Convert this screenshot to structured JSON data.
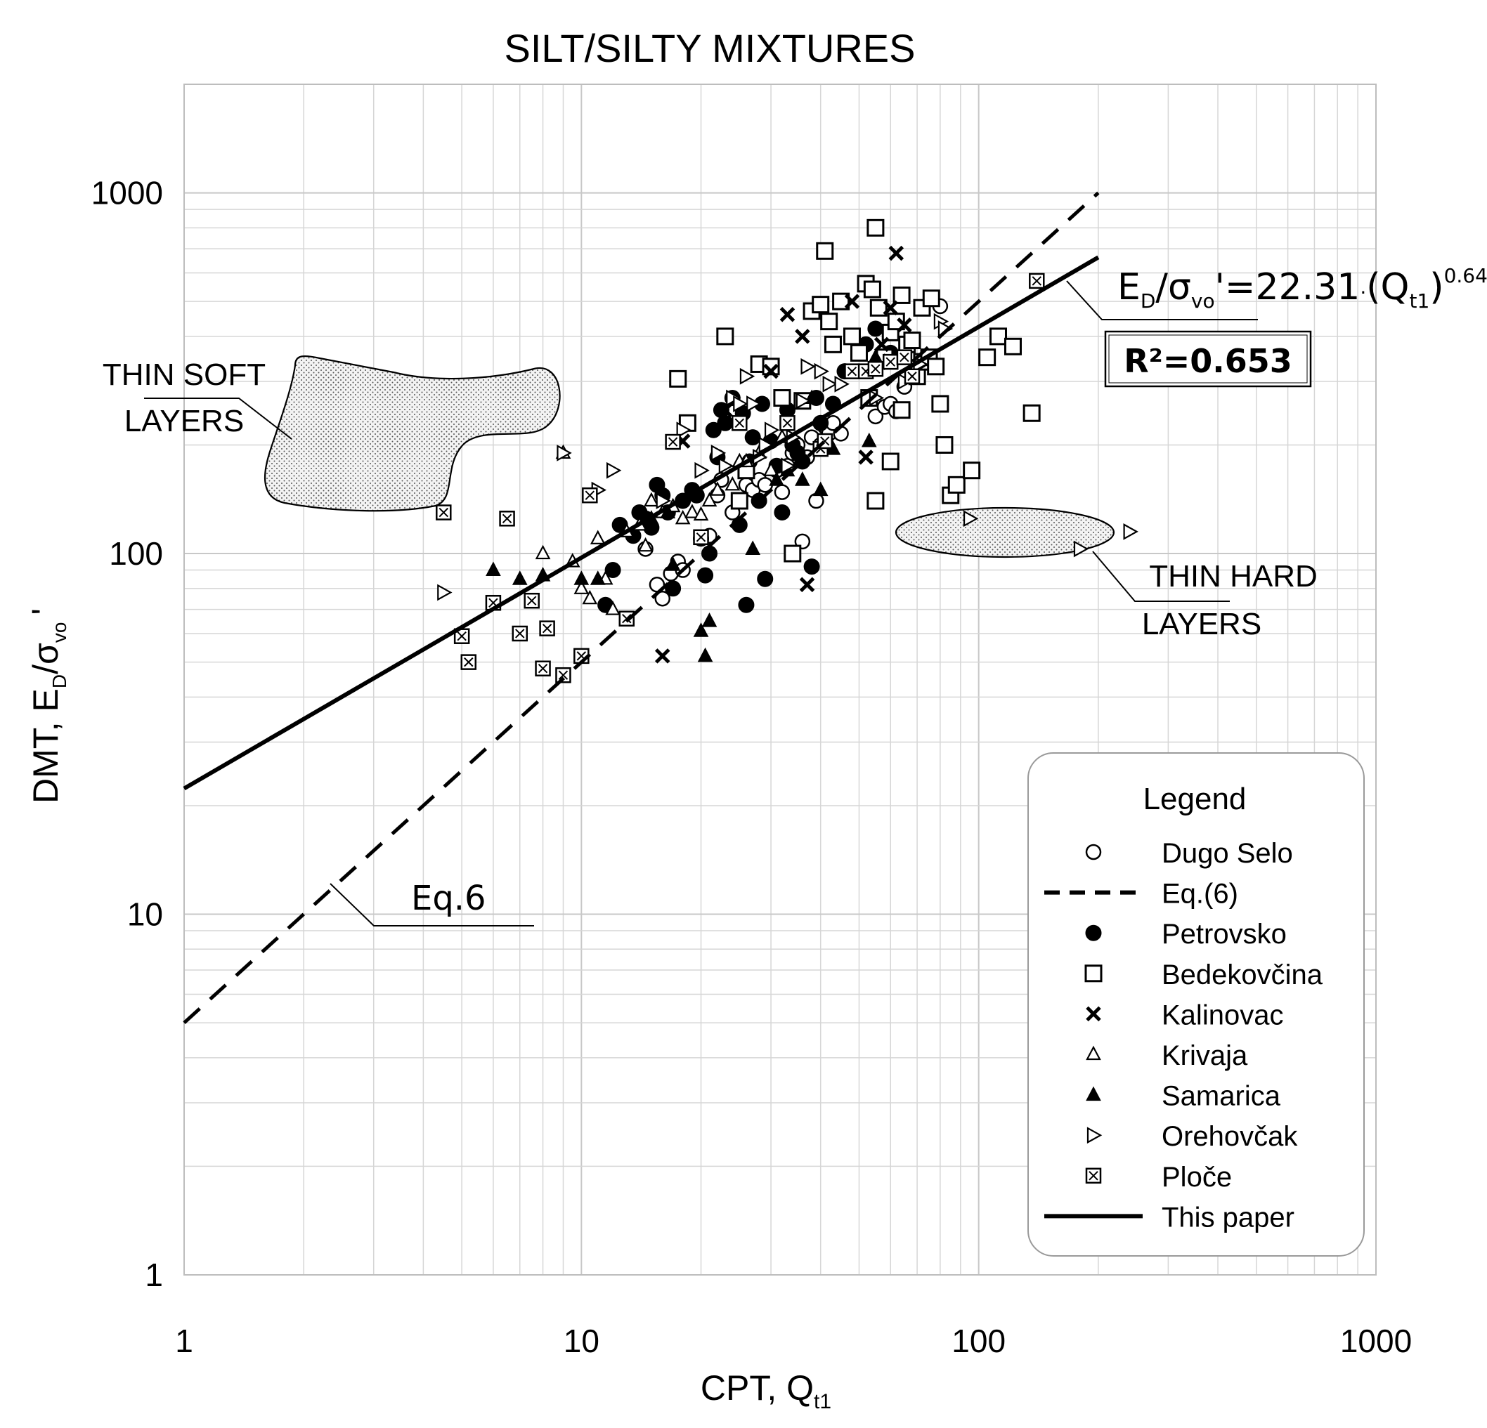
{
  "chart_data": {
    "type": "scatter",
    "title": "SILT/SILTY MIXTURES",
    "xlabel": {
      "main": "CPT, Q",
      "sub": "t1"
    },
    "ylabel": {
      "main1": "DMT, E",
      "sub1": "D",
      "main2": "/σ",
      "sub2": "vo",
      "tail": "'"
    },
    "xscale": "log",
    "yscale": "log",
    "xlim": [
      1,
      1000
    ],
    "ylim": [
      1,
      2000
    ],
    "x_ticks": [
      {
        "v": 1,
        "label": "1"
      },
      {
        "v": 10,
        "label": "10"
      },
      {
        "v": 100,
        "label": "100"
      },
      {
        "v": 1000,
        "label": "1000"
      }
    ],
    "y_ticks": [
      {
        "v": 1,
        "label": "1"
      },
      {
        "v": 10,
        "label": "10"
      },
      {
        "v": 100,
        "label": "100"
      },
      {
        "v": 1000,
        "label": "1000"
      }
    ],
    "grid": true,
    "lines": [
      {
        "name": "This paper",
        "style": "solid",
        "coef": 22.31,
        "exp": 0.64,
        "x_range": [
          1,
          200
        ]
      },
      {
        "name": "Eq.(6)",
        "style": "dashed",
        "coef": 5,
        "exp": 1.0,
        "x_range": [
          1,
          200
        ]
      }
    ],
    "equation": {
      "p1": "E",
      "s1": "D",
      "p2": "/σ",
      "s2": "vo",
      "p3": "'=22.31",
      "p4": "·",
      "p5": "(Q",
      "s3": "t1",
      "p6": ")",
      "sup": "0.64"
    },
    "r2_label": "R²=0.653",
    "eq6_label": "Eq.6",
    "regions": [
      {
        "name": "thin-soft-layers",
        "label_line1": "THIN SOFT",
        "label_line2": "LAYERS"
      },
      {
        "name": "thin-hard-layers",
        "label_line1": "THIN HARD",
        "label_line2": "LAYERS"
      }
    ],
    "series": [
      {
        "name": "Dugo Selo",
        "marker": "open-circle",
        "points": [
          [
            14.5,
            103
          ],
          [
            15.5,
            82
          ],
          [
            16,
            75
          ],
          [
            16.8,
            88
          ],
          [
            17.5,
            95
          ],
          [
            18,
            90
          ],
          [
            21,
            112
          ],
          [
            22,
            145
          ],
          [
            22.5,
            160
          ],
          [
            24,
            130
          ],
          [
            25,
            140
          ],
          [
            26,
            155
          ],
          [
            27,
            150
          ],
          [
            28,
            160
          ],
          [
            29,
            155
          ],
          [
            31,
            170
          ],
          [
            32,
            148
          ],
          [
            33,
            175
          ],
          [
            34,
            190
          ],
          [
            35,
            200
          ],
          [
            36,
            108
          ],
          [
            37,
            185
          ],
          [
            38,
            210
          ],
          [
            39,
            140
          ],
          [
            40,
            200
          ],
          [
            41,
            225
          ],
          [
            42,
            215
          ],
          [
            43,
            230
          ],
          [
            45,
            215
          ],
          [
            55,
            240
          ],
          [
            58,
            255
          ],
          [
            60,
            260
          ],
          [
            62,
            248
          ],
          [
            65,
            290
          ],
          [
            70,
            310
          ],
          [
            80,
            485
          ]
        ]
      },
      {
        "name": "Petrovsko",
        "marker": "filled-circle",
        "points": [
          [
            11.5,
            72
          ],
          [
            12,
            90
          ],
          [
            12.5,
            120
          ],
          [
            13.5,
            112
          ],
          [
            14,
            130
          ],
          [
            14.5,
            125
          ],
          [
            15,
            118
          ],
          [
            15.5,
            155
          ],
          [
            16,
            145
          ],
          [
            16.5,
            130
          ],
          [
            17,
            80
          ],
          [
            18,
            140
          ],
          [
            19,
            150
          ],
          [
            19.5,
            145
          ],
          [
            20,
            110
          ],
          [
            20.5,
            87
          ],
          [
            21,
            100
          ],
          [
            21.5,
            220
          ],
          [
            22,
            185
          ],
          [
            22.5,
            250
          ],
          [
            23,
            230
          ],
          [
            24,
            270
          ],
          [
            25,
            120
          ],
          [
            25.5,
            245
          ],
          [
            26,
            72
          ],
          [
            26.5,
            180
          ],
          [
            27,
            210
          ],
          [
            28,
            140
          ],
          [
            28.5,
            260
          ],
          [
            29,
            85
          ],
          [
            30,
            205
          ],
          [
            31,
            175
          ],
          [
            32,
            130
          ],
          [
            33,
            250
          ],
          [
            34,
            200
          ],
          [
            35,
            190
          ],
          [
            36,
            180
          ],
          [
            38,
            92
          ],
          [
            39,
            270
          ],
          [
            40,
            230
          ],
          [
            43,
            260
          ],
          [
            46,
            320
          ],
          [
            52,
            380
          ],
          [
            55,
            420
          ],
          [
            60,
            360
          ]
        ]
      },
      {
        "name": "Bedekovčina",
        "marker": "open-square",
        "points": [
          [
            17.5,
            305
          ],
          [
            18.5,
            230
          ],
          [
            23,
            400
          ],
          [
            25,
            140
          ],
          [
            26,
            170
          ],
          [
            28,
            335
          ],
          [
            30,
            330
          ],
          [
            32,
            270
          ],
          [
            34,
            100
          ],
          [
            36,
            265
          ],
          [
            38,
            470
          ],
          [
            40,
            490
          ],
          [
            42,
            440
          ],
          [
            45,
            500
          ],
          [
            48,
            400
          ],
          [
            50,
            360
          ],
          [
            52,
            560
          ],
          [
            53,
            270
          ],
          [
            54,
            540
          ],
          [
            55,
            800
          ],
          [
            56,
            480
          ],
          [
            58,
            350
          ],
          [
            60,
            410
          ],
          [
            62,
            440
          ],
          [
            64,
            520
          ],
          [
            66,
            380
          ],
          [
            68,
            390
          ],
          [
            70,
            310
          ],
          [
            72,
            340
          ],
          [
            75,
            350
          ],
          [
            80,
            260
          ],
          [
            78,
            330
          ],
          [
            82,
            200
          ],
          [
            85,
            145
          ],
          [
            88,
            155
          ],
          [
            96,
            170
          ],
          [
            105,
            350
          ],
          [
            112,
            400
          ],
          [
            122,
            375
          ],
          [
            136,
            245
          ],
          [
            55,
            140
          ],
          [
            60,
            180
          ],
          [
            64,
            250
          ],
          [
            72,
            480
          ],
          [
            76,
            510
          ],
          [
            41,
            690
          ],
          [
            43,
            380
          ]
        ]
      },
      {
        "name": "Kalinovac",
        "marker": "cross",
        "points": [
          [
            16,
            52
          ],
          [
            18,
            205
          ],
          [
            23,
            250
          ],
          [
            30,
            320
          ],
          [
            33,
            460
          ],
          [
            36,
            400
          ],
          [
            37,
            82
          ],
          [
            48,
            500
          ],
          [
            52,
            185
          ],
          [
            57,
            380
          ],
          [
            60,
            480
          ],
          [
            62,
            680
          ],
          [
            65,
            430
          ]
        ]
      },
      {
        "name": "Krivaja",
        "marker": "open-triangle-up",
        "points": [
          [
            8,
            100
          ],
          [
            9,
            190
          ],
          [
            9.5,
            95
          ],
          [
            10,
            80
          ],
          [
            10.5,
            75
          ],
          [
            11,
            110
          ],
          [
            11.5,
            85
          ],
          [
            12,
            70
          ],
          [
            13,
            115
          ],
          [
            14,
            120
          ],
          [
            14.5,
            105
          ],
          [
            15,
            140
          ],
          [
            16,
            130
          ],
          [
            17,
            135
          ],
          [
            18,
            125
          ],
          [
            19,
            130
          ],
          [
            20,
            128
          ],
          [
            21,
            140
          ],
          [
            22,
            150
          ],
          [
            24,
            155
          ],
          [
            25,
            180
          ],
          [
            26,
            180
          ],
          [
            28,
            190
          ],
          [
            30,
            170
          ],
          [
            32,
            210
          ]
        ]
      },
      {
        "name": "Samarica",
        "marker": "filled-triangle-up",
        "points": [
          [
            6,
            90
          ],
          [
            7,
            85
          ],
          [
            8,
            87
          ],
          [
            10,
            85
          ],
          [
            11,
            85
          ],
          [
            15,
            125
          ],
          [
            16.5,
            130
          ],
          [
            17,
            93
          ],
          [
            20,
            61
          ],
          [
            20.5,
            52
          ],
          [
            21,
            65
          ],
          [
            27,
            103
          ],
          [
            31,
            160
          ],
          [
            33,
            170
          ],
          [
            36,
            160
          ],
          [
            38,
            270
          ],
          [
            40,
            150
          ],
          [
            43,
            195
          ],
          [
            53,
            205
          ],
          [
            55,
            350
          ]
        ]
      },
      {
        "name": "Orehovčak",
        "marker": "open-triangle-right",
        "points": [
          [
            4.5,
            78
          ],
          [
            9,
            190
          ],
          [
            11,
            150
          ],
          [
            12,
            170
          ],
          [
            16,
            140
          ],
          [
            18,
            220
          ],
          [
            20,
            170
          ],
          [
            22,
            190
          ],
          [
            23,
            175
          ],
          [
            24,
            270
          ],
          [
            25,
            260
          ],
          [
            26,
            310
          ],
          [
            27,
            260
          ],
          [
            28,
            185
          ],
          [
            29,
            200
          ],
          [
            30,
            220
          ],
          [
            33,
            175
          ],
          [
            34,
            210
          ],
          [
            36,
            265
          ],
          [
            37,
            330
          ],
          [
            40,
            320
          ],
          [
            42,
            295
          ],
          [
            45,
            295
          ],
          [
            55,
            270
          ],
          [
            60,
            340
          ],
          [
            65,
            300
          ],
          [
            70,
            330
          ],
          [
            71,
            335
          ],
          [
            80,
            440
          ],
          [
            82,
            420
          ],
          [
            95,
            125
          ],
          [
            180,
            103
          ],
          [
            240,
            115
          ]
        ]
      },
      {
        "name": "Ploče",
        "marker": "boxed-x",
        "points": [
          [
            4.5,
            130
          ],
          [
            5,
            59
          ],
          [
            5.2,
            50
          ],
          [
            6,
            73
          ],
          [
            6.5,
            125
          ],
          [
            7,
            60
          ],
          [
            7.5,
            74
          ],
          [
            8,
            48
          ],
          [
            8.2,
            62
          ],
          [
            9,
            46
          ],
          [
            10,
            52
          ],
          [
            10.5,
            145
          ],
          [
            13,
            66
          ],
          [
            17,
            204
          ],
          [
            20,
            111
          ],
          [
            25,
            230
          ],
          [
            33,
            230
          ],
          [
            40,
            195
          ],
          [
            41,
            205
          ],
          [
            48,
            320
          ],
          [
            52,
            320
          ],
          [
            55,
            325
          ],
          [
            60,
            340
          ],
          [
            65,
            350
          ],
          [
            68,
            310
          ],
          [
            140,
            570
          ]
        ]
      }
    ],
    "legend": {
      "title": "Legend",
      "position": "bottom-right",
      "entries": [
        {
          "label": "Dugo Selo",
          "marker": "open-circle"
        },
        {
          "label": "Eq.(6)",
          "marker": "dashed-line"
        },
        {
          "label": "Petrovsko",
          "marker": "filled-circle"
        },
        {
          "label": "Bedekovčina",
          "marker": "open-square"
        },
        {
          "label": "Kalinovac",
          "marker": "cross"
        },
        {
          "label": "Krivaja",
          "marker": "open-triangle-up"
        },
        {
          "label": "Samarica",
          "marker": "filled-triangle-up"
        },
        {
          "label": "Orehovčak",
          "marker": "open-triangle-right"
        },
        {
          "label": "Ploče",
          "marker": "boxed-x"
        },
        {
          "label": "This paper",
          "marker": "solid-line"
        }
      ]
    }
  }
}
